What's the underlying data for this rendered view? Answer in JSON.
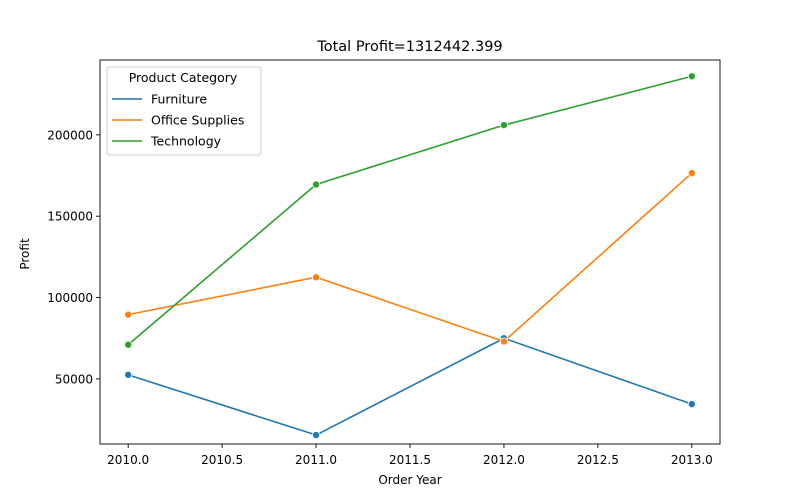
{
  "chart_data": {
    "type": "line",
    "title": "Total Profit=1312442.399",
    "xlabel": "Order Year",
    "ylabel": "Profit",
    "xlim": [
      2009.85,
      2013.15
    ],
    "ylim": [
      10000,
      246000
    ],
    "x_ticks": [
      2010.0,
      2010.5,
      2011.0,
      2011.5,
      2012.0,
      2012.5,
      2013.0
    ],
    "x_tick_labels": [
      "2010.0",
      "2010.5",
      "2011.0",
      "2011.5",
      "2012.0",
      "2012.5",
      "2013.0"
    ],
    "y_ticks": [
      50000,
      100000,
      150000,
      200000
    ],
    "y_tick_labels": [
      "50000",
      "100000",
      "150000",
      "200000"
    ],
    "grid": false,
    "legend": {
      "title": "Product Category",
      "placement": "top-left"
    },
    "x": [
      2010,
      2011,
      2012,
      2013
    ],
    "series": [
      {
        "name": "Furniture",
        "color": "#1f77b4",
        "values": [
          52500,
          15500,
          75000,
          34500
        ]
      },
      {
        "name": "Office Supplies",
        "color": "#ff7f0e",
        "values": [
          89500,
          112500,
          73000,
          176500
        ]
      },
      {
        "name": "Technology",
        "color": "#2ca02c",
        "values": [
          71000,
          169500,
          206000,
          236000
        ]
      }
    ]
  }
}
